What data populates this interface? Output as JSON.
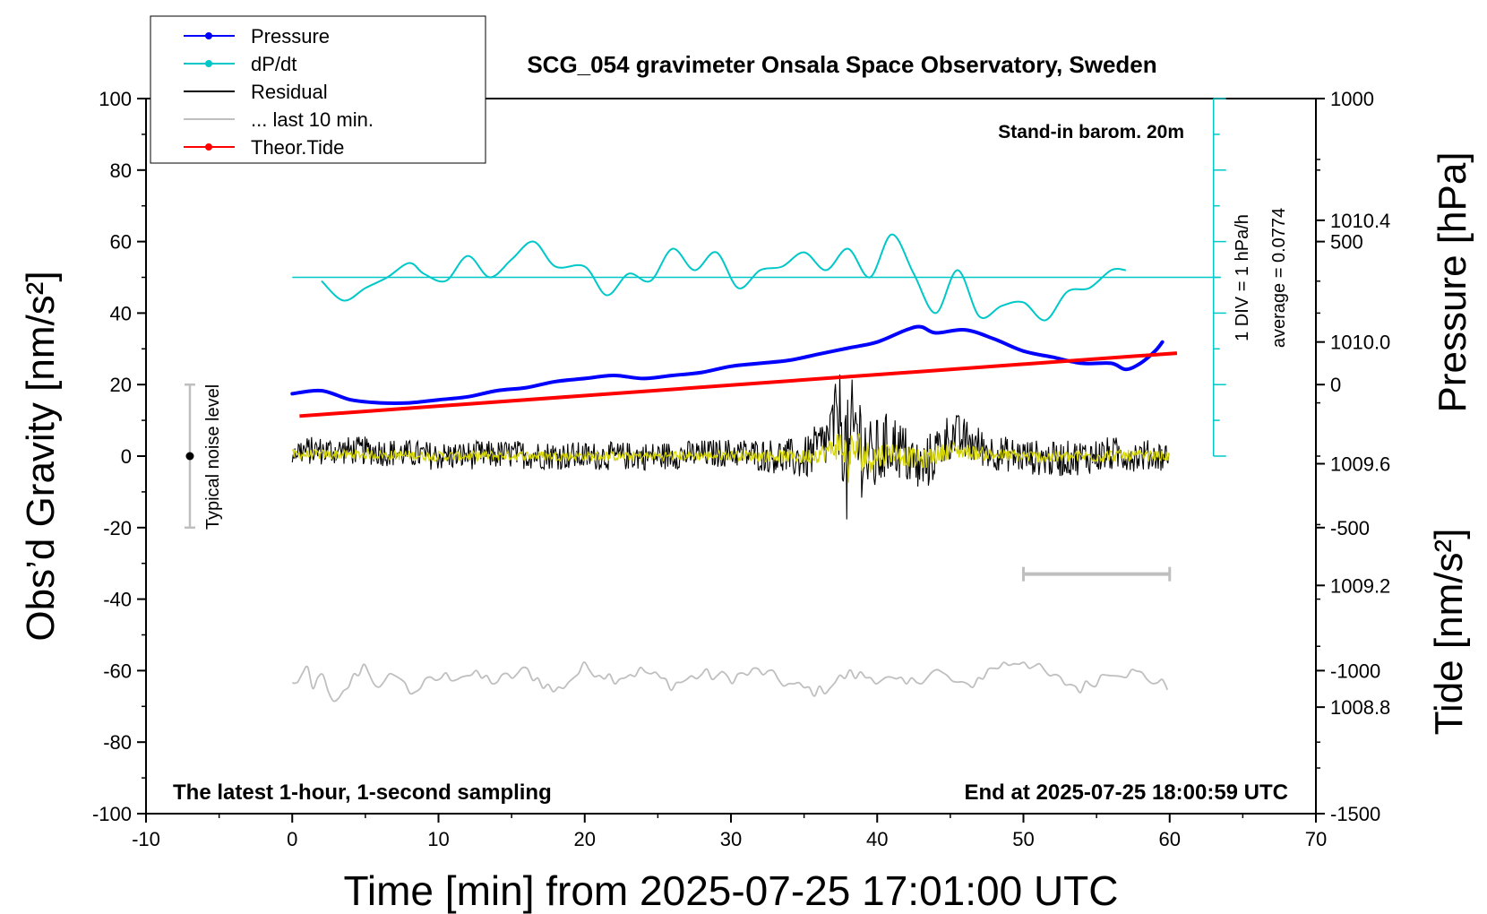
{
  "chart_data": {
    "type": "line",
    "title": "SCG_054 gravimeter Onsala Space Observatory, Sweden",
    "xlabel": "Time [min] from 2025-07-25 17:01:00 UTC",
    "ylabel_left": "Obs’d Gravity [nm/s²]",
    "ylabel_right_top": "Pressure [hPa]",
    "ylabel_right_bottom": "Tide [nm/s²]",
    "xlim": [
      -10,
      70
    ],
    "ylim_left": [
      -100,
      100
    ],
    "ylim_pressure": [
      1008.45,
      1010.8
    ],
    "ylim_tide": [
      -1500,
      1000
    ],
    "x_ticks": [
      "-10",
      "0",
      "10",
      "20",
      "30",
      "40",
      "50",
      "60",
      "70"
    ],
    "y_left_ticks": [
      "100",
      "80",
      "60",
      "40",
      "20",
      "0",
      "-20",
      "-40",
      "-60",
      "-80",
      "-100"
    ],
    "pressure_ticks": [
      "1010.4",
      "1010.0",
      "1009.6",
      "1009.2",
      "1008.8"
    ],
    "tide_ticks": [
      "1000",
      "500",
      "0",
      "-500",
      "-1000",
      "-1500"
    ],
    "grid": false,
    "legend_placement": "top-left",
    "legend": [
      {
        "label": "Pressure",
        "color": "#0000ff",
        "marker": true
      },
      {
        "label": "dP/dt",
        "color": "#00c8c8",
        "marker": true
      },
      {
        "label": "Residual",
        "color": "#000000",
        "marker": false
      },
      {
        "label": "... last 10 min.",
        "color": "#bfbfbf",
        "marker": false
      },
      {
        "label": "Theor.Tide",
        "color": "#ff0000",
        "marker": true
      }
    ],
    "annotations": {
      "barometer": "Stand-in barom. 20m",
      "div_label": "1 DIV = 1 hPa/h",
      "average_label": "average = 0.0774",
      "noise_label": "Typical noise level",
      "bottom_left": "The latest 1-hour, 1-second sampling",
      "bottom_right": "End at 2025-07-25 18:00:59 UTC"
    },
    "noise_level": {
      "x": -7,
      "center": 0,
      "range": [
        -20,
        20
      ]
    },
    "last10_bar": {
      "x": [
        50,
        60
      ],
      "y": -33
    },
    "dpdt_baseline_y": 50,
    "series": [
      {
        "name": "Pressure",
        "axis": "pressure",
        "color": "#0000ff",
        "x": [
          0,
          2,
          4,
          6,
          8,
          10,
          12,
          14,
          16,
          18,
          20,
          22,
          24,
          26,
          28,
          30,
          32,
          34,
          36,
          38,
          40,
          42,
          43,
          44,
          46,
          48,
          50,
          52,
          54,
          56,
          57,
          58,
          59,
          59.5
        ],
        "values": [
          1009.83,
          1009.84,
          1009.81,
          1009.8,
          1009.8,
          1009.81,
          1009.82,
          1009.84,
          1009.85,
          1009.87,
          1009.88,
          1009.89,
          1009.88,
          1009.89,
          1009.9,
          1009.92,
          1009.93,
          1009.94,
          1009.96,
          1009.98,
          1010.0,
          1010.04,
          1010.05,
          1010.03,
          1010.04,
          1010.01,
          1009.97,
          1009.95,
          1009.93,
          1009.93,
          1009.91,
          1009.93,
          1009.97,
          1010.0
        ]
      },
      {
        "name": "dP/dt",
        "axis": "left",
        "color": "#00c8c8",
        "x": [
          2,
          3.5,
          5,
          6.5,
          8,
          9,
          10.5,
          12,
          13.5,
          15,
          16.5,
          18,
          20,
          21.5,
          23,
          24.5,
          26,
          27.5,
          29,
          30.5,
          32,
          33.5,
          35,
          36.5,
          38,
          39.5,
          41,
          42.5,
          44,
          45.5,
          47,
          48.5,
          50,
          51.5,
          53,
          54.5,
          56,
          57
        ],
        "values": [
          49,
          43.5,
          47,
          50,
          54,
          51,
          49,
          56,
          50,
          55,
          60,
          53,
          53,
          45,
          51,
          49,
          58,
          52,
          57,
          47,
          52,
          53,
          57,
          52,
          58,
          50,
          62,
          51,
          40,
          52,
          39,
          42,
          43,
          38,
          46,
          47,
          52,
          52
        ]
      },
      {
        "name": "Residual",
        "axis": "left",
        "color": "#000000",
        "x": [
          0,
          5,
          10,
          15,
          20,
          25,
          30,
          33,
          35,
          36.5,
          37.5,
          38,
          38.5,
          39.5,
          41,
          43,
          45,
          48,
          52,
          56,
          60
        ],
        "values": [
          1.5,
          1.5,
          0,
          0.5,
          0,
          0,
          1,
          0,
          -1,
          4,
          12,
          -5,
          8,
          -2,
          4,
          -4,
          6,
          1,
          -1,
          0.5,
          0
        ],
        "envelope": [
          4,
          4,
          4,
          4,
          4,
          4,
          4,
          5,
          6,
          8,
          13,
          21,
          18,
          12,
          9,
          8,
          7,
          5,
          5,
          5,
          4
        ]
      },
      {
        "name": "... last 10 min.",
        "axis": "left",
        "color": "#bfbfbf",
        "x": [
          0,
          1,
          1.5,
          2,
          2.5,
          3,
          4,
          5,
          6,
          7,
          8,
          10,
          12,
          14,
          16,
          18,
          20,
          22,
          24,
          26,
          28,
          30,
          32,
          34,
          36,
          38,
          40,
          42,
          44,
          46,
          48,
          50,
          52,
          54,
          56,
          58,
          60
        ],
        "values": [
          -64,
          -60,
          -67,
          -58,
          -68,
          -70,
          -63,
          -58,
          -66,
          -60,
          -66,
          -62,
          -61,
          -63,
          -60,
          -66,
          -59,
          -62,
          -60,
          -64,
          -61,
          -62,
          -60,
          -64,
          -66,
          -61,
          -62,
          -64,
          -60,
          -65,
          -59,
          -57,
          -62,
          -65,
          -60,
          -61,
          -65
        ]
      },
      {
        "name": "Theor.Tide",
        "axis": "tide",
        "color": "#ff0000",
        "x": [
          0.5,
          60.5
        ],
        "values": [
          -110,
          110
        ]
      }
    ]
  }
}
